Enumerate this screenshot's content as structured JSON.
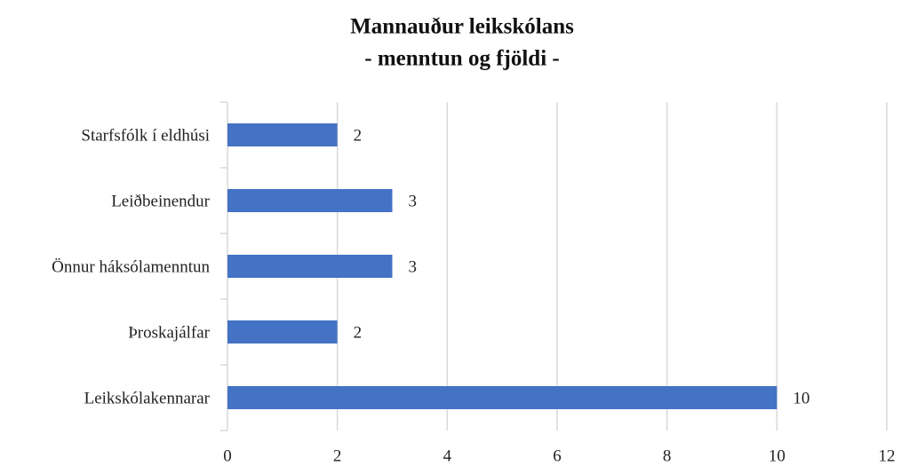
{
  "chart_data": {
    "type": "bar",
    "orientation": "horizontal",
    "title": "Mannauður leikskólans",
    "subtitle": "- menntun og fjöldi -",
    "categories": [
      "Starfsfólk í eldhúsi",
      "Leiðbeinendur",
      "Önnur háksólamenntun",
      "Þroskajálfar",
      "Leikskólakennarar"
    ],
    "values": [
      2,
      3,
      3,
      2,
      10
    ],
    "color": "#4472c4",
    "xlim": [
      0,
      12
    ],
    "xticks": [
      0,
      2,
      4,
      6,
      8,
      10,
      12
    ],
    "grid": true
  }
}
